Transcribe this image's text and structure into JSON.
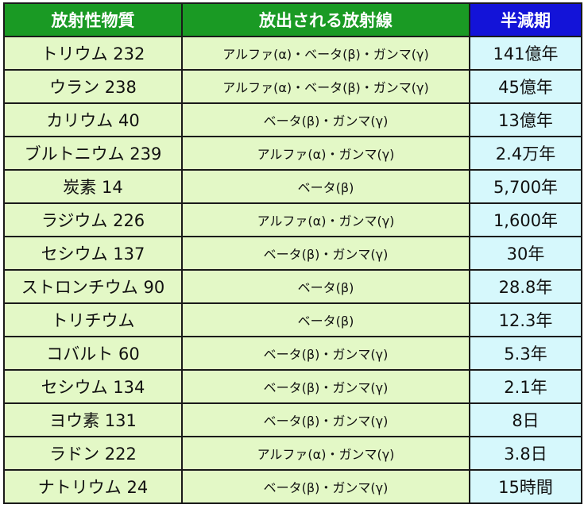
{
  "headers": {
    "substance": "放射性物質",
    "radiation": "放出される放射線",
    "halflife": "半減期"
  },
  "colors": {
    "header_green": "#1a9a24",
    "header_blue": "#1313d8",
    "cell_green": "#e3f8c6",
    "cell_cyan": "#d6f8fc"
  },
  "rows": [
    {
      "substance": "トリウム 232",
      "radiation": "アルファ(α)・ベータ(β)・ガンマ(γ)",
      "halflife": "141億年"
    },
    {
      "substance": "ウラン 238",
      "radiation": "アルファ(α)・ベータ(β)・ガンマ(γ)",
      "halflife": "45億年"
    },
    {
      "substance": "カリウム 40",
      "radiation": "ベータ(β)・ガンマ(γ)",
      "halflife": "13億年"
    },
    {
      "substance": "ブルトニウム 239",
      "radiation": "アルファ(α)・ガンマ(γ)",
      "halflife": "2.4万年"
    },
    {
      "substance": "炭素 14",
      "radiation": "ベータ(β)",
      "halflife": "5,700年"
    },
    {
      "substance": "ラジウム 226",
      "radiation": "アルファ(α)・ガンマ(γ)",
      "halflife": "1,600年"
    },
    {
      "substance": "セシウム 137",
      "radiation": "ベータ(β)・ガンマ(γ)",
      "halflife": "30年"
    },
    {
      "substance": "ストロンチウム 90",
      "radiation": "ベータ(β)",
      "halflife": "28.8年"
    },
    {
      "substance": "トリチウム",
      "radiation": "ベータ(β)",
      "halflife": "12.3年"
    },
    {
      "substance": "コバルト 60",
      "radiation": "ベータ(β)・ガンマ(γ)",
      "halflife": "5.3年"
    },
    {
      "substance": "セシウム 134",
      "radiation": "ベータ(β)・ガンマ(γ)",
      "halflife": "2.1年"
    },
    {
      "substance": "ヨウ素 131",
      "radiation": "ベータ(β)・ガンマ(γ)",
      "halflife": "8日"
    },
    {
      "substance": "ラドン 222",
      "radiation": "アルファ(α)・ガンマ(γ)",
      "halflife": "3.8日"
    },
    {
      "substance": "ナトリウム 24",
      "radiation": "ベータ(β)・ガンマ(γ)",
      "halflife": "15時間"
    }
  ]
}
